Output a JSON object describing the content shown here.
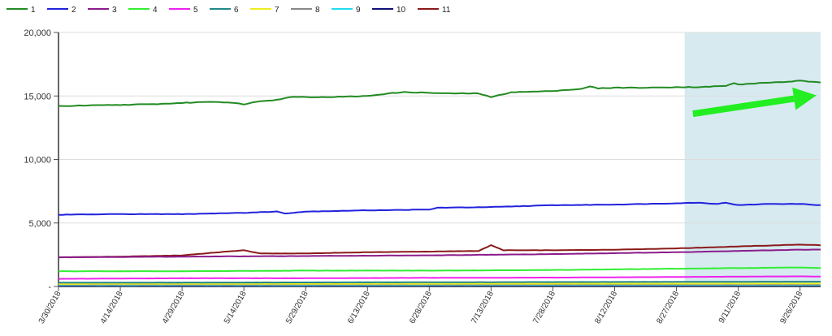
{
  "chart_data": {
    "type": "line",
    "title": "",
    "xlabel": "",
    "ylabel": "",
    "ylim": [
      0,
      20000
    ],
    "y_ticks": [
      "-",
      "5,000",
      "10,000",
      "15,000",
      "20,000"
    ],
    "y_tick_values": [
      0,
      5000,
      10000,
      15000,
      20000
    ],
    "x_start": "2018-03-30",
    "x_end": "2018-10-01",
    "x_tick_labels": [
      "3/30/2018",
      "4/14/2018",
      "4/29/2018",
      "5/14/2018",
      "5/29/2018",
      "6/13/2018",
      "6/28/2018",
      "7/13/2018",
      "7/28/2018",
      "8/12/2018",
      "8/27/2018",
      "9/11/2018",
      "9/26/2018"
    ],
    "x_tick_dates": [
      "2018-03-30",
      "2018-04-14",
      "2018-04-29",
      "2018-05-14",
      "2018-05-29",
      "2018-06-13",
      "2018-06-28",
      "2018-07-13",
      "2018-07-28",
      "2018-08-12",
      "2018-08-27",
      "2018-09-11",
      "2018-09-26"
    ],
    "grid": "horizontal",
    "legend_position": "top-left",
    "highlight_region": {
      "x_start": "2018-08-29",
      "x_end": "2018-10-01",
      "color": "#d6eaf0"
    },
    "annotation_arrow": {
      "from": [
        "2018-08-31",
        13600
      ],
      "to": [
        "2018-09-30",
        15050
      ],
      "color": "#22ee22"
    },
    "series": [
      {
        "name": "1",
        "color": "#228b22",
        "x": [
          "2018-03-30",
          "2018-04-06",
          "2018-04-14",
          "2018-04-22",
          "2018-04-29",
          "2018-05-06",
          "2018-05-10",
          "2018-05-14",
          "2018-05-18",
          "2018-05-22",
          "2018-05-26",
          "2018-06-01",
          "2018-06-08",
          "2018-06-13",
          "2018-06-18",
          "2018-06-22",
          "2018-06-28",
          "2018-07-02",
          "2018-07-06",
          "2018-07-10",
          "2018-07-13",
          "2018-07-18",
          "2018-07-25",
          "2018-07-28",
          "2018-08-04",
          "2018-08-06",
          "2018-08-08",
          "2018-08-12",
          "2018-08-20",
          "2018-08-27",
          "2018-09-02",
          "2018-09-08",
          "2018-09-10",
          "2018-09-11",
          "2018-09-18",
          "2018-09-22",
          "2018-09-26",
          "2018-10-01"
        ],
        "values": [
          14200,
          14250,
          14300,
          14350,
          14450,
          14550,
          14500,
          14350,
          14600,
          14700,
          14950,
          14900,
          14950,
          15000,
          15200,
          15300,
          15250,
          15200,
          15200,
          15200,
          14900,
          15300,
          15350,
          15400,
          15550,
          15750,
          15600,
          15650,
          15650,
          15700,
          15700,
          15800,
          16000,
          15900,
          16050,
          16100,
          16200,
          16050
        ]
      },
      {
        "name": "2",
        "color": "#2222dd",
        "x": [
          "2018-03-30",
          "2018-04-14",
          "2018-04-29",
          "2018-05-06",
          "2018-05-14",
          "2018-05-22",
          "2018-05-24",
          "2018-05-29",
          "2018-06-13",
          "2018-06-28",
          "2018-06-30",
          "2018-07-13",
          "2018-07-28",
          "2018-08-12",
          "2018-08-27",
          "2018-09-01",
          "2018-09-06",
          "2018-09-08",
          "2018-09-11",
          "2018-09-18",
          "2018-09-26",
          "2018-10-01"
        ],
        "values": [
          5650,
          5700,
          5700,
          5750,
          5800,
          5900,
          5750,
          5900,
          6000,
          6050,
          6200,
          6250,
          6400,
          6450,
          6550,
          6600,
          6500,
          6600,
          6400,
          6500,
          6500,
          6400
        ]
      },
      {
        "name": "3",
        "color": "#8b1c8b",
        "x": [
          "2018-03-30",
          "2018-04-29",
          "2018-05-29",
          "2018-06-28",
          "2018-07-28",
          "2018-08-27",
          "2018-09-26",
          "2018-10-01"
        ],
        "values": [
          2300,
          2350,
          2400,
          2450,
          2550,
          2700,
          2900,
          2900
        ]
      },
      {
        "name": "4",
        "color": "#33ee33",
        "x": [
          "2018-03-30",
          "2018-04-29",
          "2018-05-29",
          "2018-06-28",
          "2018-07-28",
          "2018-08-27",
          "2018-09-26",
          "2018-10-01"
        ],
        "values": [
          1200,
          1200,
          1250,
          1250,
          1300,
          1400,
          1500,
          1450
        ]
      },
      {
        "name": "5",
        "color": "#ee22ee",
        "x": [
          "2018-03-30",
          "2018-04-29",
          "2018-05-29",
          "2018-06-28",
          "2018-07-28",
          "2018-08-27",
          "2018-09-26",
          "2018-10-01"
        ],
        "values": [
          600,
          650,
          650,
          680,
          700,
          750,
          800,
          780
        ]
      },
      {
        "name": "6",
        "color": "#228888",
        "x": [
          "2018-03-30",
          "2018-05-29",
          "2018-07-28",
          "2018-10-01"
        ],
        "values": [
          300,
          320,
          350,
          380
        ]
      },
      {
        "name": "7",
        "color": "#eeee22",
        "x": [
          "2018-03-30",
          "2018-05-29",
          "2018-07-28",
          "2018-10-01"
        ],
        "values": [
          200,
          210,
          220,
          230
        ]
      },
      {
        "name": "8",
        "color": "#888888",
        "x": [
          "2018-03-30",
          "2018-05-29",
          "2018-07-28",
          "2018-10-01"
        ],
        "values": [
          150,
          150,
          160,
          160
        ]
      },
      {
        "name": "9",
        "color": "#22ddee",
        "x": [
          "2018-03-30",
          "2018-05-29",
          "2018-07-28",
          "2018-10-01"
        ],
        "values": [
          100,
          100,
          110,
          110
        ]
      },
      {
        "name": "10",
        "color": "#111177",
        "x": [
          "2018-03-30",
          "2018-05-29",
          "2018-07-28",
          "2018-10-01"
        ],
        "values": [
          60,
          60,
          70,
          70
        ]
      },
      {
        "name": "11",
        "color": "#8b1a1a",
        "x": [
          "2018-03-30",
          "2018-04-14",
          "2018-04-29",
          "2018-05-10",
          "2018-05-14",
          "2018-05-18",
          "2018-05-29",
          "2018-06-13",
          "2018-06-28",
          "2018-07-10",
          "2018-07-13",
          "2018-07-16",
          "2018-07-28",
          "2018-08-12",
          "2018-08-27",
          "2018-09-11",
          "2018-09-26",
          "2018-10-01"
        ],
        "values": [
          2300,
          2350,
          2450,
          2750,
          2850,
          2600,
          2600,
          2700,
          2750,
          2800,
          3250,
          2850,
          2850,
          2900,
          3000,
          3150,
          3300,
          3250
        ]
      }
    ]
  }
}
